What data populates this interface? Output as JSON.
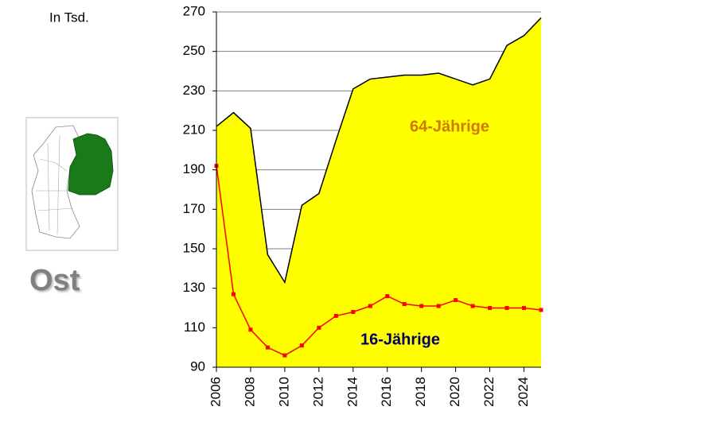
{
  "chart_data": {
    "type": "line",
    "unit_label": "In Tsd.",
    "region": "Ost",
    "x": [
      2006,
      2007,
      2008,
      2009,
      2010,
      2011,
      2012,
      2013,
      2014,
      2015,
      2016,
      2017,
      2018,
      2019,
      2020,
      2021,
      2022,
      2023,
      2024,
      2025
    ],
    "series": [
      {
        "name": "64-Jährige",
        "color": "#000000",
        "fill": "#FFFF00",
        "label_color": "#CC7A00",
        "values": [
          212,
          219,
          211,
          147,
          133,
          172,
          178,
          205,
          231,
          236,
          237,
          238,
          238,
          239,
          236,
          233,
          236,
          253,
          258,
          267
        ]
      },
      {
        "name": "16-Jährige",
        "color": "#FF0000",
        "label_color": "#000066",
        "marker": "square",
        "values": [
          192,
          127,
          109,
          100,
          96,
          101,
          110,
          116,
          118,
          121,
          126,
          122,
          121,
          121,
          124,
          121,
          120,
          120,
          120,
          119
        ]
      }
    ],
    "xlim": [
      2006,
      2025
    ],
    "xticks": [
      2006,
      2008,
      2010,
      2012,
      2014,
      2016,
      2018,
      2020,
      2022,
      2024
    ],
    "ylim": [
      90,
      270
    ],
    "yticks": [
      90,
      110,
      130,
      150,
      170,
      190,
      210,
      230,
      250,
      270
    ],
    "grid": true
  }
}
